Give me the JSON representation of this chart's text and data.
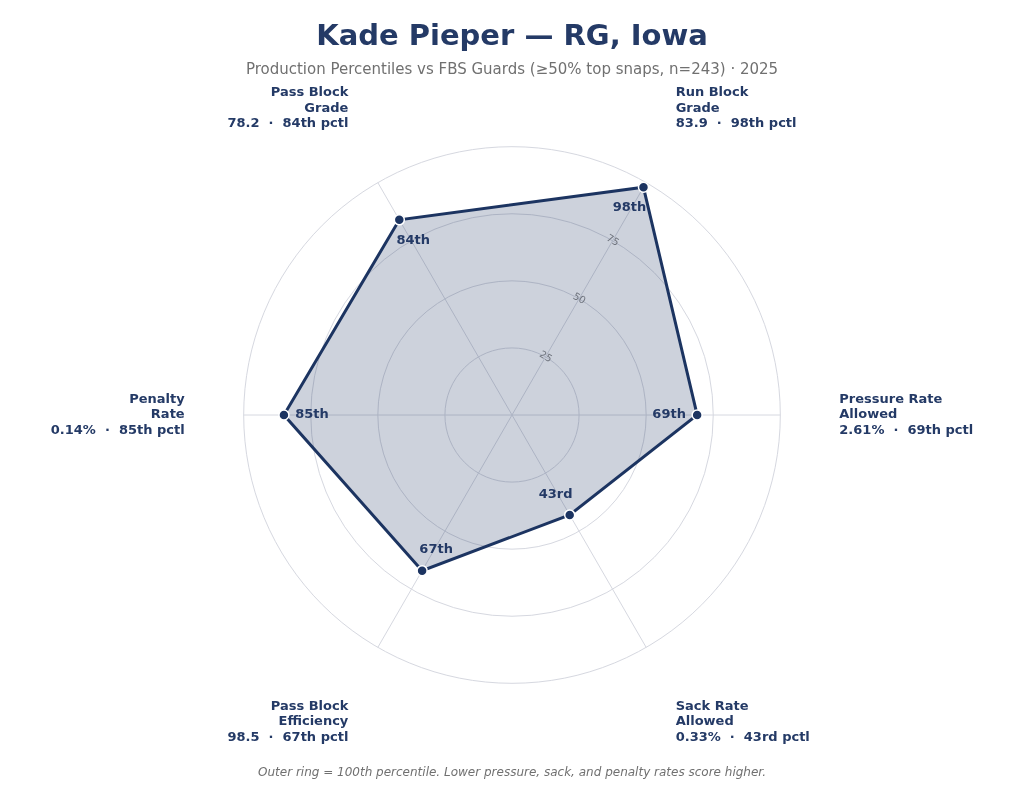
{
  "chart_data": {
    "type": "radar",
    "title": "Kade Pieper — RG, Iowa",
    "subtitle": "Production Percentiles vs FBS Guards (≥50% top snaps, n=243) · 2025",
    "categories": [
      "Run Block\nGrade\n83.9  ·  98th pctl",
      "Pressure Rate\nAllowed\n2.61%  ·  69th pctl",
      "Sack Rate\nAllowed\n0.33%  ·  43rd pctl",
      "Pass Block\nEfficiency\n98.5  ·  67th pctl",
      "Penalty\nRate\n0.14%  ·  85th pctl",
      "Pass Block\nGrade\n78.2  ·  84th pctl"
    ],
    "series": [
      {
        "color": "#1c3461",
        "values": [
          98,
          69,
          43,
          67,
          85,
          84
        ],
        "value_labels": [
          "98th",
          "69th",
          "43rd",
          "67th",
          "85th",
          "84th"
        ]
      }
    ],
    "ylim": [
      0,
      100
    ],
    "yticks": [
      25,
      50,
      75
    ],
    "grid": true,
    "marker": "circle",
    "line_style": "solid",
    "legend": false,
    "annotations": [
      "Outer ring = 100th percentile. Lower pressure, sack, and penalty rates score higher."
    ]
  }
}
